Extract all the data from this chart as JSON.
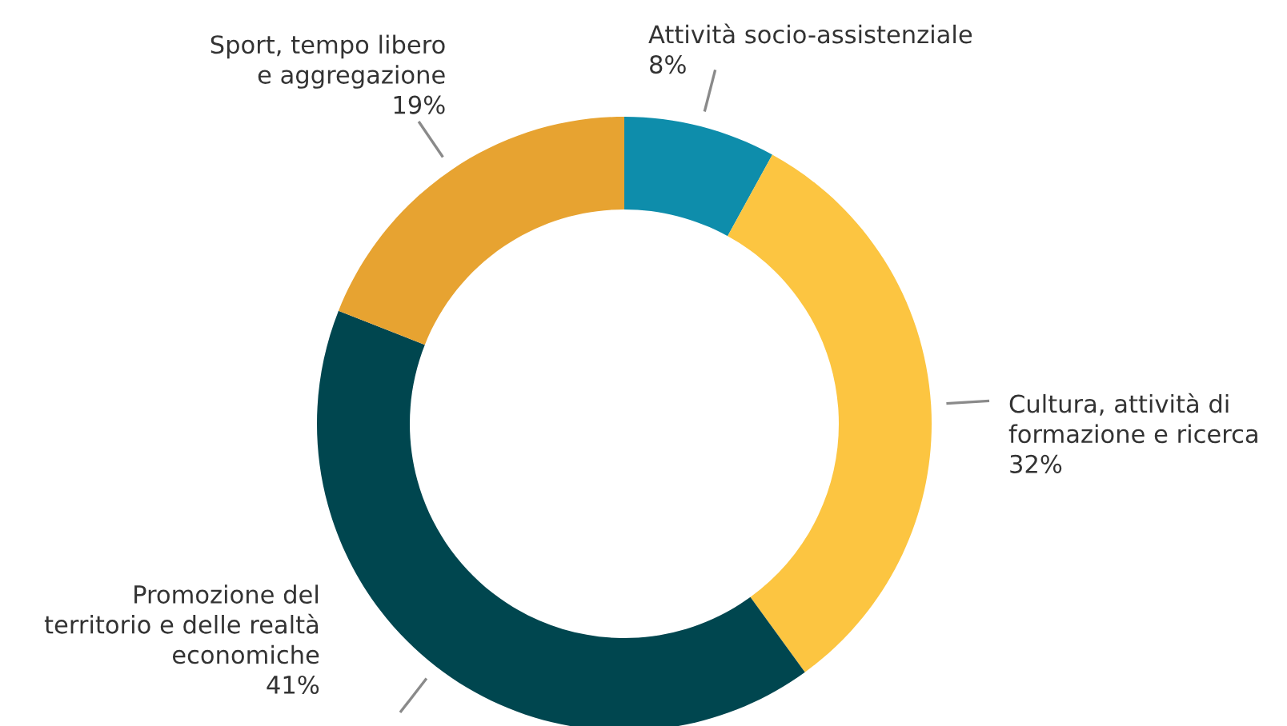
{
  "chart_data": {
    "type": "donut",
    "categories": [
      "Attività socio-assistenziale",
      "Cultura, attività di\nformazione e ricerca",
      "Promozione del\nterritorio e delle realtà\neconomiche",
      "Sport, tempo libero\ne aggregazione"
    ],
    "values": [
      8,
      32,
      41,
      19
    ],
    "value_labels": [
      "8%",
      "32%",
      "41%",
      "19%"
    ],
    "colors": [
      "#0e8dab",
      "#fcc541",
      "#00464f",
      "#e7a331"
    ]
  }
}
